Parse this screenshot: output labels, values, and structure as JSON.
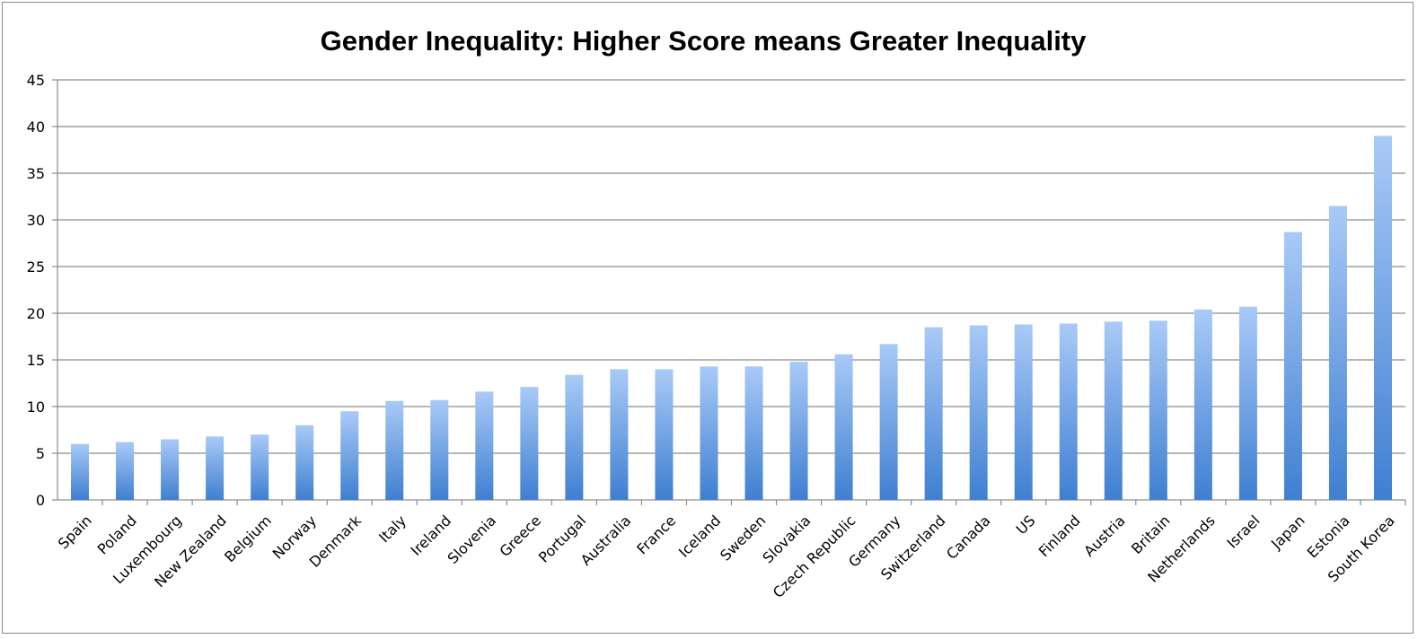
{
  "chart_data": {
    "type": "bar",
    "title": "Gender Inequality: Higher Score means Greater Inequality",
    "xlabel": "",
    "ylabel": "",
    "ylim": [
      0,
      45
    ],
    "yticks": [
      0,
      5,
      10,
      15,
      20,
      25,
      30,
      35,
      40,
      45
    ],
    "grid": true,
    "legend": "none",
    "bar_color_top": "#a9caf7",
    "bar_color_bottom": "#3f7fd1",
    "categories": [
      "Spain",
      "Poland",
      "Luxembourg",
      "New Zealand",
      "Belgium",
      "Norway",
      "Denmark",
      "Italy",
      "Ireland",
      "Slovenia",
      "Greece",
      "Portugal",
      "Australia",
      "France",
      "Iceland",
      "Sweden",
      "Slovakia",
      "Czech Republic",
      "Germany",
      "Switzerland",
      "Canada",
      "US",
      "Finland",
      "Austria",
      "Britain",
      "Netherlands",
      "Israel",
      "Japan",
      "Estonia",
      "South Korea"
    ],
    "values": [
      6.0,
      6.2,
      6.5,
      6.8,
      7.0,
      8.0,
      9.5,
      10.6,
      10.7,
      11.6,
      12.1,
      13.4,
      14.0,
      14.0,
      14.3,
      14.3,
      14.8,
      15.6,
      16.7,
      18.5,
      18.7,
      18.8,
      18.9,
      19.1,
      19.2,
      20.4,
      20.7,
      28.7,
      31.5,
      39.0
    ]
  }
}
